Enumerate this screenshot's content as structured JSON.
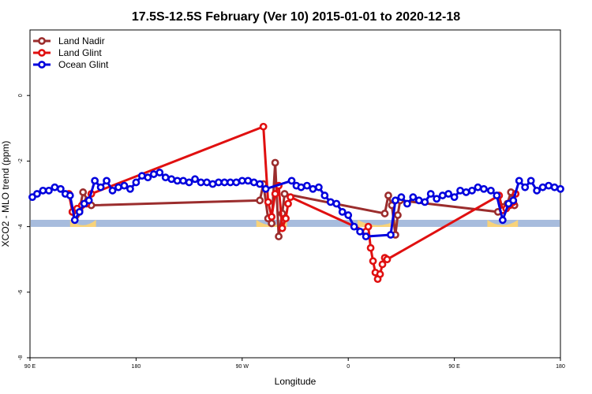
{
  "chart_data": {
    "type": "line",
    "title": "17.5S-12.5S February (Ver 10)   2015-01-01 to 2020-12-18",
    "xlabel": "Longitude",
    "ylabel": "XCO2 - MLO trend (ppm)",
    "x_tick_labels": [
      "90 E",
      "180",
      "90 W",
      "0",
      "90 E",
      "180"
    ],
    "x_tick_values": [
      90,
      180,
      270,
      360,
      450,
      540
    ],
    "y_tick_labels": [
      "-8",
      "-6",
      "-4",
      "-2",
      "0"
    ],
    "y_tick_values": [
      -8,
      -6,
      -4,
      -2,
      0
    ],
    "xlim": [
      90,
      540
    ],
    "ylim": [
      -8,
      2
    ],
    "legend_position": "top-left",
    "land_band": {
      "y": -3.9,
      "land_ranges": [
        [
          124,
          146
        ],
        [
          282,
          308
        ],
        [
          368,
          402
        ],
        [
          478,
          504
        ]
      ]
    },
    "series": [
      {
        "name": "Land Nadir",
        "color": "#9B2D2D",
        "x": [
          126,
          129,
          132,
          135,
          139,
          142,
          285,
          288,
          292,
          295,
          298,
          301,
          304,
          306,
          391,
          394,
          397,
          400,
          402,
          404,
          487,
          491,
          495,
          498,
          501
        ],
        "y": [
          -3.55,
          -3.65,
          -3.5,
          -2.95,
          -3.2,
          -3.35,
          -3.2,
          -2.7,
          -3.75,
          -3.9,
          -2.05,
          -4.3,
          -3.6,
          -3.0,
          -3.6,
          -3.05,
          -3.35,
          -4.25,
          -3.65,
          -3.2,
          -3.55,
          -3.4,
          -3.3,
          -2.95,
          -3.35
        ]
      },
      {
        "name": "Land Glint",
        "color": "#E01010",
        "x": [
          123,
          126,
          130,
          134,
          138,
          142,
          288,
          292,
          295,
          298,
          301,
          304,
          307,
          309,
          311,
          375,
          377,
          379,
          381,
          383,
          385,
          387,
          389,
          391,
          393,
          488,
          491,
          494,
          497,
          500,
          502
        ],
        "y": [
          -3.0,
          -3.55,
          -3.45,
          -3.35,
          -3.3,
          -3.0,
          -0.95,
          -3.25,
          -3.7,
          -3.0,
          -2.75,
          -4.05,
          -3.75,
          -3.3,
          -3.1,
          -4.15,
          -4.0,
          -4.65,
          -5.05,
          -5.4,
          -5.6,
          -5.45,
          -5.15,
          -4.95,
          -5.0,
          -3.05,
          -3.5,
          -3.45,
          -3.35,
          -3.25,
          -3.0
        ]
      },
      {
        "name": "Ocean Glint",
        "color": "#0000DD",
        "x": [
          92,
          96,
          101,
          106,
          111,
          116,
          120,
          124,
          128,
          132,
          136,
          140,
          145,
          150,
          155,
          160,
          165,
          170,
          175,
          180,
          185,
          190,
          195,
          200,
          205,
          210,
          215,
          220,
          225,
          230,
          235,
          240,
          245,
          250,
          255,
          260,
          265,
          270,
          275,
          280,
          285,
          290,
          312,
          316,
          320,
          325,
          330,
          335,
          340,
          345,
          350,
          355,
          360,
          365,
          370,
          375,
          396,
          400,
          405,
          410,
          415,
          420,
          425,
          430,
          435,
          440,
          445,
          450,
          455,
          460,
          465,
          470,
          475,
          481,
          486,
          491,
          496,
          500,
          505,
          510,
          515,
          520,
          525,
          530,
          535,
          540
        ],
        "y": [
          -3.1,
          -3.0,
          -2.9,
          -2.9,
          -2.8,
          -2.85,
          -3.0,
          -3.05,
          -3.8,
          -3.55,
          -3.3,
          -3.2,
          -2.6,
          -2.8,
          -2.6,
          -2.9,
          -2.8,
          -2.75,
          -2.85,
          -2.65,
          -2.45,
          -2.5,
          -2.4,
          -2.35,
          -2.5,
          -2.55,
          -2.6,
          -2.6,
          -2.65,
          -2.55,
          -2.65,
          -2.65,
          -2.7,
          -2.65,
          -2.65,
          -2.65,
          -2.65,
          -2.6,
          -2.6,
          -2.65,
          -2.7,
          -2.85,
          -2.6,
          -2.75,
          -2.8,
          -2.75,
          -2.85,
          -2.8,
          -3.05,
          -3.25,
          -3.3,
          -3.55,
          -3.65,
          -4.0,
          -4.15,
          -4.3,
          -4.25,
          -3.2,
          -3.1,
          -3.3,
          -3.1,
          -3.2,
          -3.25,
          -3.0,
          -3.15,
          -3.05,
          -3.0,
          -3.1,
          -2.9,
          -2.95,
          -2.9,
          -2.8,
          -2.85,
          -2.9,
          -3.05,
          -3.8,
          -3.3,
          -3.2,
          -2.6,
          -2.8,
          -2.6,
          -2.9,
          -2.8,
          -2.75,
          -2.8,
          -2.85
        ]
      }
    ]
  }
}
